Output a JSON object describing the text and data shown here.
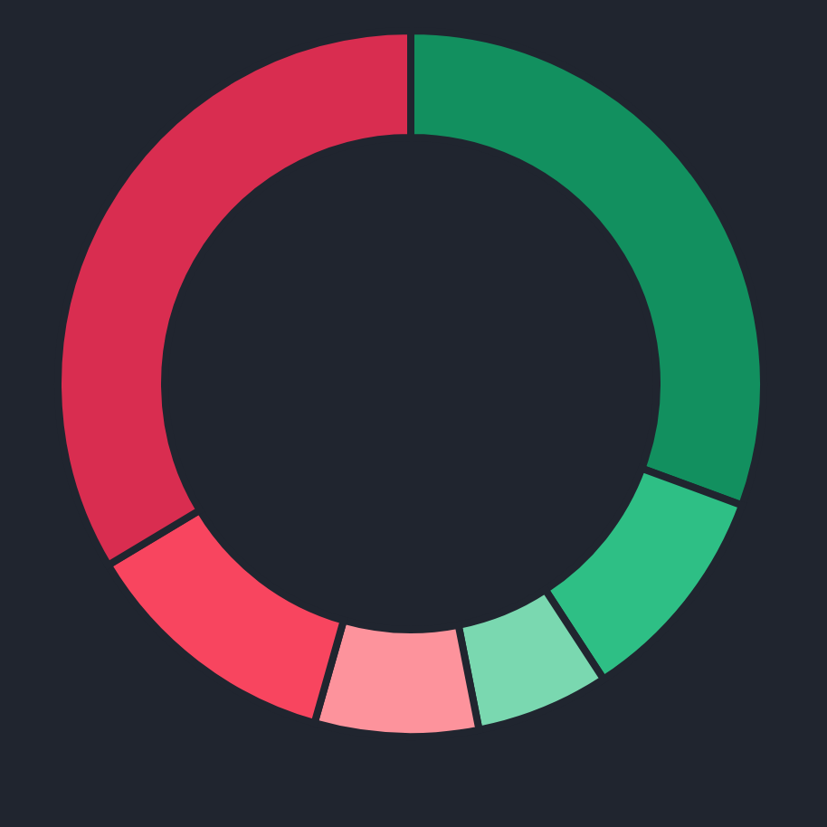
{
  "chart_data": {
    "type": "donut",
    "categories": [
      null,
      null,
      null,
      null,
      null,
      null
    ],
    "values": [
      30.6,
      10.2,
      6.1,
      7.5,
      12.0,
      33.6
    ],
    "colors": [
      "#12905f",
      "#2ebf85",
      "#7ad8b0",
      "#fd939c",
      "#f8455f",
      "#d92d50"
    ]
  }
}
